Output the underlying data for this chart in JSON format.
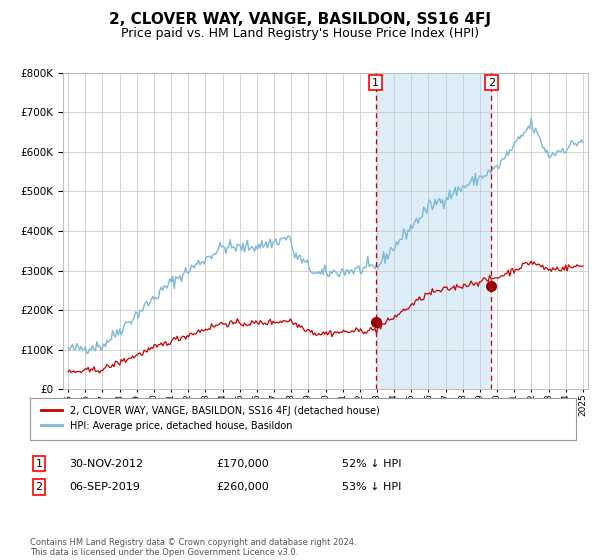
{
  "title": "2, CLOVER WAY, VANGE, BASILDON, SS16 4FJ",
  "subtitle": "Price paid vs. HM Land Registry's House Price Index (HPI)",
  "title_fontsize": 11,
  "subtitle_fontsize": 9,
  "legend_line1": "2, CLOVER WAY, VANGE, BASILDON, SS16 4FJ (detached house)",
  "legend_line2": "HPI: Average price, detached house, Basildon",
  "annotation1_label": "1",
  "annotation1_date": "30-NOV-2012",
  "annotation1_price": "£170,000",
  "annotation1_pct": "52% ↓ HPI",
  "annotation2_label": "2",
  "annotation2_date": "06-SEP-2019",
  "annotation2_price": "£260,000",
  "annotation2_pct": "53% ↓ HPI",
  "footer": "Contains HM Land Registry data © Crown copyright and database right 2024.\nThis data is licensed under the Open Government Licence v3.0.",
  "hpi_color": "#7db8d8",
  "hpi_fill_color": "#ddeef8",
  "price_color": "#cc0000",
  "marker_color": "#990000",
  "dashed_color": "#cc0000",
  "grid_color": "#cccccc",
  "background_color": "#ffffff",
  "plot_bg_color": "#ffffff",
  "ylim": [
    0,
    800000
  ],
  "yticks": [
    0,
    100000,
    200000,
    300000,
    400000,
    500000,
    600000,
    700000,
    800000
  ],
  "year_start": 1995,
  "year_end": 2025,
  "sale1_year": 2012.92,
  "sale1_price": 170000,
  "sale2_year": 2019.67,
  "sale2_price": 260000
}
